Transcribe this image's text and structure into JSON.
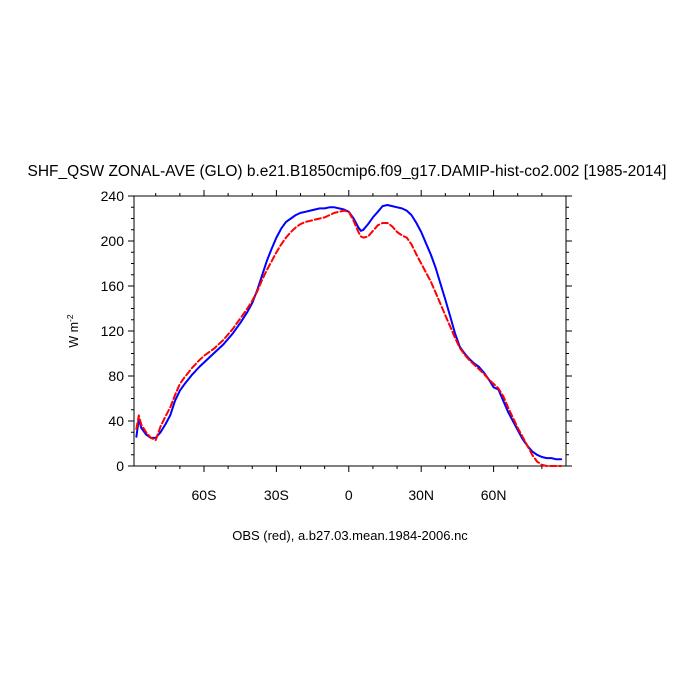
{
  "chart_data": {
    "type": "line",
    "title": "SHF_QSW ZONAL-AVE (GLO) b.e21.B1850cmip6.f09_g17.DAMIP-hist-co2.002 [1985-2014]",
    "ylabel_main": "W m",
    "ylabel_sup": "-2",
    "footer": "OBS (red), a.b27.03.mean.1984-2006.nc",
    "xlim": [
      -89,
      90
    ],
    "ylim": [
      0,
      240
    ],
    "grid": false,
    "x_ticks": [
      {
        "value": -60,
        "label": "60S"
      },
      {
        "value": -30,
        "label": "30S"
      },
      {
        "value": 0,
        "label": "0"
      },
      {
        "value": 30,
        "label": "30N"
      },
      {
        "value": 60,
        "label": "60N"
      }
    ],
    "y_ticks": [
      {
        "value": 0,
        "label": "0"
      },
      {
        "value": 40,
        "label": "40"
      },
      {
        "value": 80,
        "label": "80"
      },
      {
        "value": 120,
        "label": "120"
      },
      {
        "value": 160,
        "label": "160"
      },
      {
        "value": 200,
        "label": "200"
      },
      {
        "value": 240,
        "label": "240"
      }
    ],
    "series": [
      {
        "color": "#0000ff",
        "dash": "solid",
        "x": [
          -88,
          -87,
          -86,
          -84,
          -82,
          -80,
          -78,
          -76,
          -74,
          -72,
          -70,
          -68,
          -65,
          -62,
          -60,
          -56,
          -52,
          -48,
          -45,
          -42,
          -40,
          -38,
          -36,
          -34,
          -32,
          -30,
          -28,
          -26,
          -24,
          -22,
          -20,
          -18,
          -16,
          -14,
          -12,
          -10,
          -8,
          -6,
          -4,
          -2,
          0,
          2,
          4,
          5,
          6,
          8,
          10,
          12,
          14,
          16,
          18,
          20,
          22,
          24,
          26,
          28,
          30,
          32,
          34,
          36,
          38,
          40,
          42,
          44,
          46,
          48,
          50,
          52,
          54,
          56,
          58,
          60,
          62,
          64,
          66,
          68,
          70,
          72,
          74,
          76,
          78,
          80,
          82,
          84,
          86,
          88
        ],
        "y": [
          26,
          42,
          34,
          28,
          25,
          25,
          30,
          37,
          45,
          58,
          67,
          73,
          81,
          88,
          92,
          100,
          108,
          118,
          127,
          137,
          145,
          156,
          169,
          182,
          193,
          203,
          211,
          217,
          220,
          223,
          225,
          226,
          227,
          228,
          229,
          229,
          230,
          230,
          229,
          228,
          226,
          220,
          212,
          209,
          210,
          215,
          221,
          226,
          231,
          232,
          231,
          230,
          229,
          227,
          223,
          216,
          208,
          198,
          188,
          176,
          162,
          148,
          133,
          118,
          106,
          100,
          95,
          91,
          88,
          83,
          77,
          70,
          68,
          58,
          48,
          40,
          32,
          24,
          18,
          13,
          10,
          8,
          7,
          7,
          6,
          6
        ]
      },
      {
        "color": "#ff0000",
        "dash": "dashed",
        "x": [
          -88,
          -87,
          -86,
          -84,
          -82,
          -80,
          -78,
          -76,
          -74,
          -72,
          -70,
          -68,
          -65,
          -62,
          -60,
          -56,
          -52,
          -48,
          -45,
          -42,
          -40,
          -38,
          -36,
          -34,
          -32,
          -30,
          -28,
          -26,
          -24,
          -22,
          -20,
          -18,
          -16,
          -14,
          -12,
          -10,
          -8,
          -6,
          -4,
          -2,
          0,
          2,
          4,
          5,
          6,
          8,
          10,
          12,
          14,
          16,
          18,
          20,
          22,
          24,
          26,
          28,
          30,
          32,
          34,
          36,
          38,
          40,
          42,
          44,
          46,
          48,
          50,
          52,
          54,
          56,
          58,
          60,
          62,
          64,
          66,
          68,
          70,
          72,
          74,
          76,
          78,
          80,
          82,
          84,
          86,
          88
        ],
        "y": [
          33,
          45,
          37,
          30,
          25,
          23,
          35,
          44,
          52,
          63,
          73,
          79,
          87,
          94,
          98,
          104,
          112,
          122,
          131,
          140,
          147,
          155,
          165,
          174,
          182,
          190,
          197,
          203,
          208,
          212,
          215,
          217,
          218,
          219,
          220,
          221,
          223,
          225,
          226,
          227,
          226,
          218,
          208,
          204,
          203,
          204,
          209,
          214,
          216,
          216,
          213,
          208,
          205,
          203,
          197,
          188,
          180,
          172,
          164,
          154,
          144,
          134,
          124,
          114,
          105,
          99,
          94,
          90,
          86,
          82,
          77,
          73,
          69,
          62,
          52,
          43,
          34,
          26,
          18,
          10,
          4,
          1,
          0,
          0,
          0,
          0
        ]
      }
    ]
  }
}
